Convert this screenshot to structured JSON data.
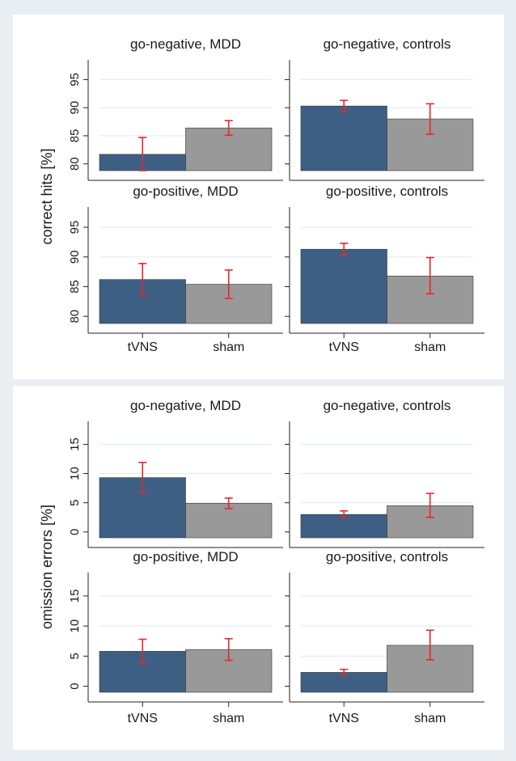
{
  "colors": {
    "frame": "#e8eef2",
    "tvns_bar": "#3e5f84",
    "sham_bar": "#999999",
    "error_bar": "#e8262d",
    "grid": "#e2e8ee",
    "text": "#1a1a1a"
  },
  "chart_data": [
    {
      "type": "bar",
      "ylabel": "correct hits [%]",
      "yticks": [
        80,
        85,
        90,
        95
      ],
      "ylim": [
        78.8,
        96.5
      ],
      "categories": [
        "tVNS",
        "sham"
      ],
      "grid": true,
      "panels": [
        {
          "title": "go-negative, MDD",
          "values": [
            81.7,
            86.4
          ],
          "err_low": [
            78.8,
            85.1
          ],
          "err_high": [
            84.7,
            87.7
          ]
        },
        {
          "title": "go-negative, controls",
          "values": [
            90.3,
            88.0
          ],
          "err_low": [
            89.3,
            85.3
          ],
          "err_high": [
            91.3,
            90.7
          ]
        },
        {
          "title": "go-positive, MDD",
          "values": [
            86.2,
            85.4
          ],
          "err_low": [
            83.5,
            83.0
          ],
          "err_high": [
            88.9,
            87.8
          ]
        },
        {
          "title": "go-positive, controls",
          "values": [
            91.3,
            86.8
          ],
          "err_low": [
            90.3,
            83.8
          ],
          "err_high": [
            92.3,
            89.9
          ]
        }
      ]
    },
    {
      "type": "bar",
      "ylabel": "omission errors [%]",
      "yticks": [
        0,
        5,
        10,
        15
      ],
      "ylim": [
        -1,
        17
      ],
      "categories": [
        "tVNS",
        "sham"
      ],
      "grid": true,
      "panels": [
        {
          "title": "go-negative, MDD",
          "values": [
            9.3,
            4.9
          ],
          "err_low": [
            6.8,
            4.0
          ],
          "err_high": [
            11.9,
            5.8
          ]
        },
        {
          "title": "go-negative, controls",
          "values": [
            3.0,
            4.5
          ],
          "err_low": [
            2.4,
            2.5
          ],
          "err_high": [
            3.6,
            6.6
          ]
        },
        {
          "title": "go-positive, MDD",
          "values": [
            5.8,
            6.1
          ],
          "err_low": [
            3.8,
            4.3
          ],
          "err_high": [
            7.8,
            7.9
          ]
        },
        {
          "title": "go-positive, controls",
          "values": [
            2.3,
            6.8
          ],
          "err_low": [
            1.8,
            4.4
          ],
          "err_high": [
            2.8,
            9.3
          ]
        }
      ]
    }
  ]
}
